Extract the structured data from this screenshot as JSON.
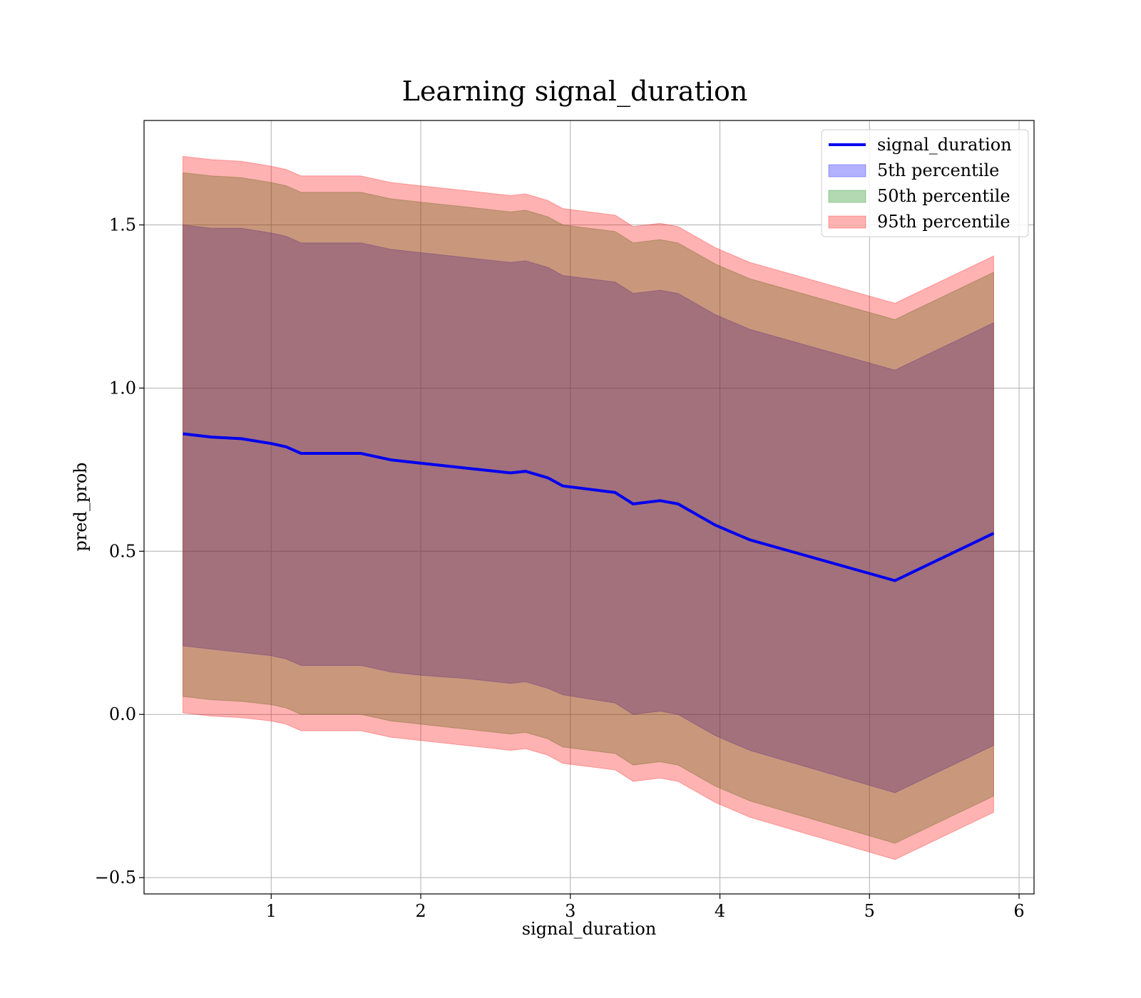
{
  "chart_data": {
    "type": "area",
    "title": "Learning signal_duration",
    "xlabel": "signal_duration",
    "ylabel": "pred_prob",
    "xlim": [
      0.15,
      6.1
    ],
    "ylim": [
      -0.55,
      1.82
    ],
    "xticks": [
      1,
      2,
      3,
      4,
      5,
      6
    ],
    "yticks": [
      -0.5,
      0.0,
      0.5,
      1.0,
      1.5
    ],
    "xtick_labels": [
      "1",
      "2",
      "3",
      "4",
      "5",
      "6"
    ],
    "ytick_labels": [
      "−0.5",
      "0.0",
      "0.5",
      "1.0",
      "1.5"
    ],
    "grid": true,
    "legend_position": "top-right",
    "x": [
      0.41,
      0.6,
      0.8,
      1.0,
      1.1,
      1.2,
      1.5,
      1.6,
      1.8,
      2.0,
      2.3,
      2.5,
      2.6,
      2.7,
      2.85,
      2.95,
      3.3,
      3.42,
      3.6,
      3.72,
      3.97,
      4.2,
      5.17,
      5.83
    ],
    "series": [
      {
        "name": "signal_duration",
        "kind": "line",
        "color": "#0000ee",
        "values": [
          0.86,
          0.85,
          0.845,
          0.83,
          0.82,
          0.8,
          0.8,
          0.8,
          0.78,
          0.77,
          0.755,
          0.745,
          0.74,
          0.745,
          0.725,
          0.7,
          0.68,
          0.645,
          0.655,
          0.645,
          0.58,
          0.535,
          0.41,
          0.555
        ]
      },
      {
        "name": "5th percentile",
        "kind": "band",
        "color": "#0000ff",
        "opacity": 0.3,
        "lower": [
          0.21,
          0.2,
          0.19,
          0.18,
          0.17,
          0.15,
          0.15,
          0.15,
          0.13,
          0.12,
          0.11,
          0.1,
          0.095,
          0.1,
          0.08,
          0.06,
          0.035,
          0.0,
          0.01,
          0.0,
          -0.065,
          -0.11,
          -0.24,
          -0.095
        ],
        "upper": [
          1.5,
          1.49,
          1.49,
          1.475,
          1.465,
          1.445,
          1.445,
          1.445,
          1.425,
          1.415,
          1.4,
          1.39,
          1.385,
          1.39,
          1.37,
          1.345,
          1.325,
          1.29,
          1.3,
          1.29,
          1.225,
          1.18,
          1.055,
          1.2
        ]
      },
      {
        "name": "50th percentile",
        "kind": "band",
        "color": "#008000",
        "opacity": 0.3,
        "lower": [
          0.055,
          0.045,
          0.04,
          0.03,
          0.02,
          0.0,
          0.0,
          0.0,
          -0.02,
          -0.03,
          -0.045,
          -0.055,
          -0.06,
          -0.055,
          -0.075,
          -0.1,
          -0.12,
          -0.155,
          -0.145,
          -0.155,
          -0.22,
          -0.265,
          -0.395,
          -0.25
        ],
        "upper": [
          1.66,
          1.65,
          1.645,
          1.63,
          1.62,
          1.6,
          1.6,
          1.6,
          1.58,
          1.57,
          1.555,
          1.545,
          1.54,
          1.545,
          1.525,
          1.5,
          1.48,
          1.445,
          1.455,
          1.445,
          1.38,
          1.335,
          1.21,
          1.355
        ]
      },
      {
        "name": "95th percentile",
        "kind": "band",
        "color": "#ff0000",
        "opacity": 0.3,
        "lower": [
          0.005,
          -0.005,
          -0.01,
          -0.02,
          -0.03,
          -0.05,
          -0.05,
          -0.05,
          -0.07,
          -0.08,
          -0.095,
          -0.105,
          -0.11,
          -0.105,
          -0.125,
          -0.15,
          -0.17,
          -0.205,
          -0.195,
          -0.205,
          -0.27,
          -0.315,
          -0.445,
          -0.3
        ],
        "upper": [
          1.71,
          1.7,
          1.695,
          1.68,
          1.67,
          1.65,
          1.65,
          1.65,
          1.63,
          1.62,
          1.605,
          1.595,
          1.59,
          1.595,
          1.575,
          1.55,
          1.53,
          1.495,
          1.505,
          1.495,
          1.43,
          1.385,
          1.26,
          1.405
        ]
      }
    ]
  }
}
